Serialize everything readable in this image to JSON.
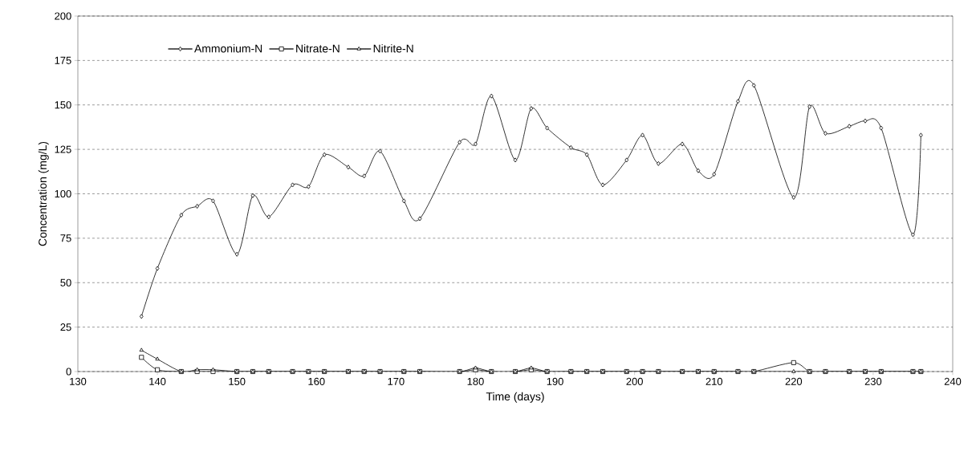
{
  "chart_data": {
    "type": "line",
    "xlabel": "Time (days)",
    "ylabel": "Concentration (mg/L)",
    "xlim": [
      130,
      240
    ],
    "xticks": [
      130,
      140,
      150,
      160,
      170,
      180,
      190,
      200,
      210,
      220,
      230,
      240
    ],
    "ylim": [
      0,
      200
    ],
    "yticks": [
      0,
      25,
      50,
      75,
      100,
      125,
      150,
      175,
      200
    ],
    "grid": "y",
    "legend": "top left",
    "line_style": "solid",
    "x": [
      138,
      140,
      143,
      145,
      147,
      150,
      152,
      154,
      157,
      159,
      161,
      164,
      166,
      168,
      171,
      173,
      178,
      180,
      182,
      185,
      187,
      189,
      192,
      194,
      196,
      199,
      201,
      203,
      206,
      208,
      210,
      213,
      215,
      220,
      222,
      224,
      227,
      229,
      231,
      235,
      236
    ],
    "series": [
      {
        "name": "Ammonium-N",
        "color": "#000000",
        "marker": "diamond",
        "values": [
          31,
          58,
          88,
          93,
          96,
          66,
          99,
          87,
          105,
          104,
          122,
          115,
          110,
          124,
          96,
          86,
          129,
          128,
          155,
          119,
          148,
          137,
          126,
          122,
          105,
          119,
          133,
          117,
          128,
          113,
          111,
          152,
          161,
          98,
          149,
          134,
          138,
          141,
          137,
          77,
          133
        ]
      },
      {
        "name": "Nitrate-N",
        "color": "#000000",
        "marker": "square",
        "values": [
          8,
          1,
          0,
          0,
          0,
          0,
          0,
          0,
          0,
          0,
          0,
          0,
          0,
          0,
          0,
          0,
          0,
          1,
          0,
          0,
          1,
          0,
          0,
          0,
          0,
          0,
          0,
          0,
          0,
          0,
          0,
          0,
          0,
          5,
          0,
          0,
          0,
          0,
          0,
          0,
          0
        ]
      },
      {
        "name": "Nitrite-N",
        "color": "#000000",
        "marker": "triangle",
        "values": [
          12,
          7,
          0,
          1,
          1,
          0,
          0,
          0,
          0,
          0,
          0,
          0,
          0,
          0,
          0,
          0,
          0,
          2,
          0,
          0,
          2,
          0,
          0,
          0,
          0,
          0,
          0,
          0,
          0,
          0,
          0,
          0,
          0,
          0,
          0,
          0,
          0,
          0,
          0,
          0,
          0
        ]
      }
    ]
  }
}
